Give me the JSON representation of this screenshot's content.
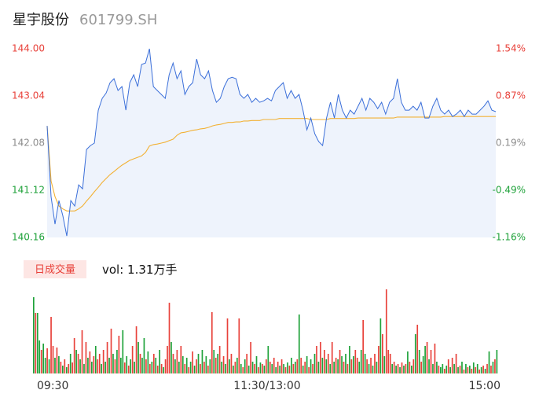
{
  "header": {
    "name": "星宇股份",
    "code": "601799.SH"
  },
  "volume_panel": {
    "badge": "日成交量",
    "vol_label": "vol: 1.31万手"
  },
  "colors": {
    "up": "#e8413a",
    "down": "#1fa23a",
    "flat": "#8c8c8c",
    "price_line": "#3b6fd9",
    "avg_line": "#f2b134",
    "area_fill": "#eef3fc",
    "badge_bg": "#fde6e4",
    "last_bar": "#f4a6a2"
  },
  "chart_data": {
    "type": "line",
    "ylim": [
      140.16,
      144.0
    ],
    "y_ticks": [
      "144.00",
      "143.04",
      "142.08",
      "141.12",
      "140.16"
    ],
    "pct_ticks": [
      "1.54%",
      "0.87%",
      "0.19%",
      "-0.49%",
      "-1.16%"
    ],
    "x_ticks": [
      "09:30",
      "11:30/13:00",
      "15:00"
    ],
    "series": [
      {
        "values": [
          142.43,
          140.99,
          140.43,
          140.91,
          140.6,
          140.19,
          140.91,
          140.8,
          141.23,
          141.15,
          141.95,
          142.03,
          142.08,
          142.75,
          142.99,
          143.1,
          143.31,
          143.39,
          143.15,
          143.23,
          142.75,
          143.31,
          143.47,
          143.23,
          143.68,
          143.71,
          144.0,
          143.23,
          143.15,
          143.07,
          142.99,
          143.47,
          143.71,
          143.39,
          143.55,
          143.07,
          143.23,
          143.31,
          143.79,
          143.47,
          143.39,
          143.55,
          143.15,
          142.91,
          142.99,
          143.23,
          143.39,
          143.42,
          143.39,
          143.07,
          142.99,
          143.07,
          142.91,
          142.99,
          142.91,
          142.94,
          142.99,
          142.94,
          143.15,
          143.23,
          143.31,
          142.99,
          143.15,
          142.99,
          143.07,
          142.75,
          142.35,
          142.59,
          142.27,
          142.11,
          142.03,
          142.59,
          142.91,
          142.59,
          143.07,
          142.75,
          142.59,
          142.75,
          142.67,
          142.83,
          142.99,
          142.75,
          142.99,
          142.91,
          142.78,
          142.91,
          142.67,
          142.91,
          142.99,
          143.39,
          142.91,
          142.75,
          142.75,
          142.83,
          142.75,
          142.91,
          142.59,
          142.59,
          142.83,
          142.99,
          142.75,
          142.67,
          142.75,
          142.62,
          142.67,
          142.75,
          142.62,
          142.75,
          142.67,
          142.67,
          142.75,
          142.83,
          142.94,
          142.75,
          142.72
        ]
      },
      {
        "values": [
          142.43,
          141.31,
          140.99,
          140.8,
          140.74,
          140.7,
          140.7,
          140.7,
          140.74,
          140.8,
          140.9,
          140.99,
          141.09,
          141.18,
          141.28,
          141.36,
          141.44,
          141.5,
          141.57,
          141.63,
          141.68,
          141.73,
          141.76,
          141.79,
          141.82,
          141.89,
          142.02,
          142.05,
          142.06,
          142.08,
          142.1,
          142.13,
          142.16,
          142.24,
          142.29,
          142.3,
          142.32,
          142.34,
          142.35,
          142.37,
          142.38,
          142.4,
          142.43,
          142.45,
          142.46,
          142.48,
          142.5,
          142.5,
          142.51,
          142.51,
          142.53,
          142.53,
          142.54,
          142.54,
          142.54,
          142.56,
          142.56,
          142.56,
          142.56,
          142.58,
          142.58,
          142.58,
          142.58,
          142.58,
          142.58,
          142.58,
          142.58,
          142.56,
          142.56,
          142.56,
          142.56,
          142.56,
          142.58,
          142.58,
          142.58,
          142.58,
          142.58,
          142.58,
          142.58,
          142.59,
          142.59,
          142.59,
          142.59,
          142.59,
          142.59,
          142.59,
          142.59,
          142.59,
          142.59,
          142.61,
          142.61,
          142.61,
          142.61,
          142.61,
          142.61,
          142.61,
          142.61,
          142.61,
          142.61,
          142.61,
          142.61,
          142.62,
          142.62,
          142.62,
          142.62,
          142.62,
          142.62,
          142.62,
          142.62,
          142.62,
          142.62,
          142.62,
          142.62,
          142.62,
          142.62
        ]
      }
    ],
    "volume": [
      194,
      154,
      154,
      84,
      60,
      76,
      40,
      64,
      36,
      144,
      70,
      40,
      66,
      44,
      30,
      20,
      36,
      16,
      24,
      50,
      28,
      90,
      60,
      50,
      36,
      110,
      24,
      80,
      40,
      56,
      30,
      44,
      70,
      36,
      50,
      24,
      60,
      30,
      80,
      40,
      114,
      50,
      36,
      60,
      96,
      40,
      110,
      28,
      44,
      20,
      36,
      70,
      30,
      120,
      80,
      50,
      40,
      90,
      36,
      56,
      24,
      30,
      50,
      40,
      20,
      60,
      24,
      16,
      36,
      70,
      180,
      80,
      50,
      36,
      60,
      30,
      70,
      44,
      24,
      40,
      16,
      30,
      56,
      20,
      36,
      50,
      24,
      60,
      30,
      44,
      20,
      36,
      156,
      60,
      40,
      50,
      70,
      30,
      44,
      24,
      140,
      36,
      50,
      20,
      30,
      40,
      140,
      24,
      16,
      36,
      50,
      20,
      80,
      30,
      24,
      44,
      16,
      28,
      24,
      20,
      36,
      70,
      30,
      24,
      40,
      16,
      30,
      20,
      36,
      24,
      16,
      28,
      20,
      40,
      24,
      30,
      36,
      150,
      40,
      20,
      30,
      44,
      16,
      36,
      24,
      50,
      70,
      30,
      80,
      40,
      60,
      36,
      50,
      24,
      80,
      30,
      40,
      36,
      60,
      44,
      30,
      50,
      24,
      70,
      36,
      44,
      60,
      40,
      30,
      60,
      136,
      50,
      36,
      24,
      40,
      20,
      50,
      30,
      70,
      140,
      100,
      44,
      214,
      60,
      50,
      24,
      30,
      20,
      24,
      16,
      28,
      20,
      24,
      56,
      30,
      20,
      36,
      100,
      124,
      60,
      30,
      44,
      70,
      80,
      36,
      60,
      24,
      76,
      30,
      20,
      16,
      24,
      12,
      20,
      36,
      16,
      40,
      24,
      50,
      16,
      20,
      30,
      10,
      24,
      16,
      20,
      12,
      28,
      16,
      24,
      10,
      16,
      20,
      12,
      24,
      56,
      20,
      30,
      36,
      60
    ],
    "volume_dir": [
      -1,
      1,
      -1,
      -1,
      1,
      -1,
      -1,
      1,
      -1,
      1,
      1,
      -1,
      1,
      -1,
      1,
      -1,
      1,
      -1,
      1,
      -1,
      1,
      1,
      -1,
      1,
      -1,
      1,
      -1,
      1,
      -1,
      1,
      -1,
      1,
      -1,
      1,
      1,
      -1,
      1,
      -1,
      1,
      -1,
      1,
      -1,
      1,
      -1,
      1,
      -1,
      -1,
      1,
      -1,
      1,
      -1,
      1,
      -1,
      1,
      -1,
      1,
      -1,
      -1,
      1,
      -1,
      1,
      -1,
      1,
      -1,
      1,
      -1,
      1,
      -1,
      1,
      1,
      1,
      -1,
      1,
      -1,
      1,
      -1,
      1,
      -1,
      1,
      -1,
      1,
      -1,
      1,
      -1,
      1,
      -1,
      1,
      -1,
      1,
      -1,
      1,
      -1,
      1,
      -1,
      1,
      -1,
      1,
      -1,
      1,
      -1,
      1,
      -1,
      1,
      -1,
      1,
      -1,
      1,
      -1,
      1,
      -1,
      1,
      -1,
      1,
      -1,
      1,
      -1,
      1,
      -1,
      1,
      -1,
      1,
      -1,
      1,
      -1,
      1,
      -1,
      1,
      -1,
      1,
      -1,
      1,
      -1,
      1,
      -1,
      1,
      -1,
      1,
      -1,
      1,
      -1,
      1,
      -1,
      1,
      -1,
      1,
      -1,
      1,
      -1,
      1,
      -1,
      1,
      -1,
      1,
      -1,
      1,
      -1,
      1,
      -1,
      1,
      -1,
      1,
      -1,
      1,
      -1,
      1,
      -1,
      1,
      1,
      -1,
      -1,
      1,
      -1,
      1,
      -1,
      1,
      -1,
      1,
      -1,
      1,
      -1,
      1,
      -1,
      1,
      1,
      1,
      -1,
      1,
      -1,
      1,
      -1,
      1,
      -1,
      1,
      -1,
      1,
      -1,
      1,
      -1,
      1,
      -1,
      1,
      -1,
      -1,
      1,
      -1,
      1,
      -1,
      1,
      -1,
      1,
      -1,
      -1,
      1,
      -1,
      1,
      -1,
      1,
      -1,
      1,
      -1,
      1,
      -1,
      1,
      -1,
      1,
      -1,
      1,
      -1,
      1,
      -1,
      1,
      -1,
      1,
      -1,
      1,
      -1,
      1,
      -1,
      1,
      -1,
      1,
      -1,
      1,
      0
    ]
  }
}
